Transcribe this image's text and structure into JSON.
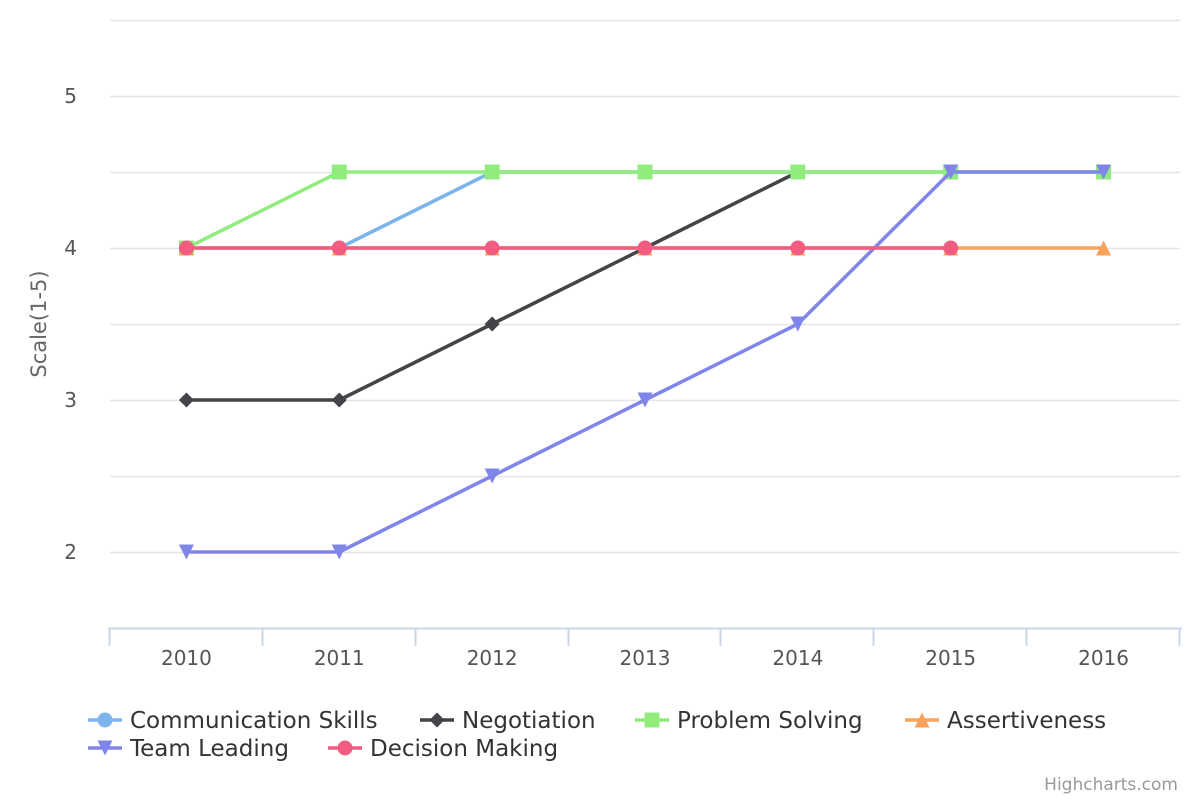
{
  "chart_data": {
    "type": "line",
    "title": "",
    "xlabel": "",
    "ylabel": "Scale(1-5)",
    "categories": [
      "2010",
      "2011",
      "2012",
      "2013",
      "2014",
      "2015",
      "2016"
    ],
    "ylim": [
      1.5,
      5.5
    ],
    "yticks": [
      "2",
      "3",
      "4",
      "5"
    ],
    "grid": true,
    "legend": "bottom",
    "series": [
      {
        "name": "Communication Skills",
        "color": "#7cb5ec",
        "marker": "circle",
        "values": [
          4,
          4,
          4.5,
          4.5,
          4.5,
          4.5,
          4.5
        ]
      },
      {
        "name": "Negotiation",
        "color": "#434348",
        "marker": "diamond",
        "values": [
          3,
          3,
          3.5,
          4,
          4.5,
          null,
          null
        ]
      },
      {
        "name": "Problem Solving",
        "color": "#90ed7d",
        "marker": "square",
        "values": [
          4,
          4.5,
          4.5,
          4.5,
          4.5,
          4.5,
          4.5
        ]
      },
      {
        "name": "Assertiveness",
        "color": "#f7a35c",
        "marker": "triangle",
        "values": [
          4,
          4,
          4,
          4,
          4,
          4,
          4
        ]
      },
      {
        "name": "Team Leading",
        "color": "#8085e9",
        "marker": "triangle-down",
        "values": [
          2,
          2,
          2.5,
          3,
          3.5,
          4.5,
          4.5
        ]
      },
      {
        "name": "Decision Making",
        "color": "#f15c80",
        "marker": "circle",
        "values": [
          4,
          4,
          4,
          4,
          4,
          4,
          null
        ]
      }
    ]
  },
  "credits": "Highcharts.com"
}
